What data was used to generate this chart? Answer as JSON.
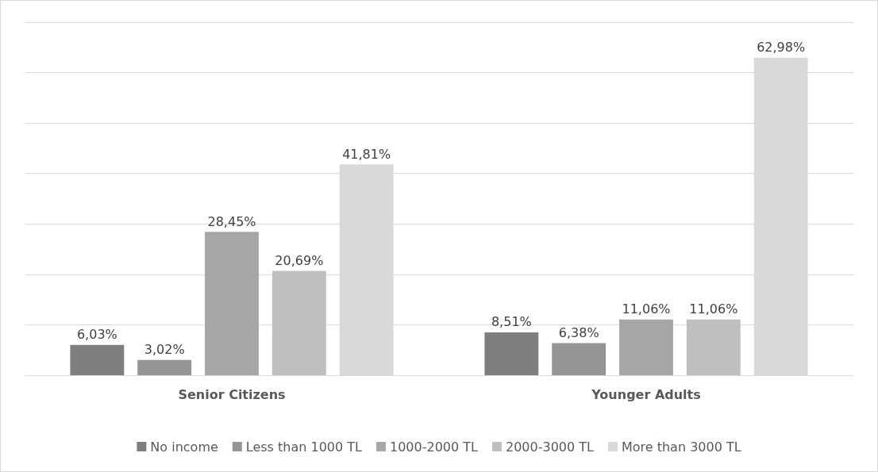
{
  "chart_data": {
    "type": "bar",
    "categories": [
      "Senior Citizens",
      "Younger Adults"
    ],
    "series": [
      {
        "name": "No income",
        "color": "#7f7f7f",
        "values": [
          6.03,
          8.51
        ],
        "value_labels": [
          "6,03%",
          "8,51%"
        ]
      },
      {
        "name": "Less than 1000 TL",
        "color": "#959595",
        "values": [
          3.02,
          6.38
        ],
        "value_labels": [
          "3,02%",
          "6,38%"
        ]
      },
      {
        "name": "1000-2000 TL",
        "color": "#a6a6a6",
        "values": [
          28.45,
          11.06
        ],
        "value_labels": [
          "28,45%",
          "11,06%"
        ]
      },
      {
        "name": "2000-3000 TL",
        "color": "#bfbfbf",
        "values": [
          20.69,
          11.06
        ],
        "value_labels": [
          "20,69%",
          "11,06%"
        ]
      },
      {
        "name": "More than 3000 TL",
        "color": "#d9d9d9",
        "values": [
          41.81,
          62.98
        ],
        "value_labels": [
          "41,81%",
          "62,98%"
        ]
      }
    ],
    "ylim": [
      0,
      70
    ],
    "yticks": [
      0,
      10,
      20,
      30,
      40,
      50,
      60,
      70
    ],
    "grid": "y",
    "tick_labels": "x",
    "legend": "bottom"
  }
}
